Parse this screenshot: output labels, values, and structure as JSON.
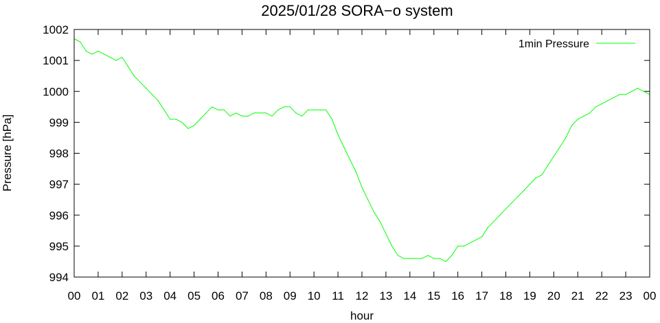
{
  "chart_data": {
    "type": "line",
    "title": "2025/01/28 SORA−o system",
    "xlabel": "hour",
    "ylabel": "Pressure [hPa]",
    "xlim": [
      0,
      24
    ],
    "ylim": [
      994,
      1002
    ],
    "x_tick_labels": [
      "00",
      "01",
      "02",
      "03",
      "04",
      "05",
      "06",
      "07",
      "08",
      "09",
      "10",
      "11",
      "12",
      "13",
      "14",
      "15",
      "16",
      "17",
      "18",
      "19",
      "20",
      "21",
      "22",
      "23",
      "00"
    ],
    "y_ticks": [
      994,
      995,
      996,
      997,
      998,
      999,
      1000,
      1001,
      1002
    ],
    "grid": false,
    "legend_position": "top-right",
    "series": [
      {
        "name": "1min Pressure",
        "color": "#00ff00",
        "x": [
          0,
          0.25,
          0.5,
          0.75,
          1.0,
          1.25,
          1.5,
          1.75,
          2.0,
          2.25,
          2.5,
          2.75,
          3.0,
          3.25,
          3.5,
          3.75,
          4.0,
          4.25,
          4.5,
          4.75,
          5.0,
          5.25,
          5.5,
          5.75,
          6.0,
          6.25,
          6.5,
          6.75,
          7.0,
          7.25,
          7.5,
          7.75,
          8.0,
          8.25,
          8.5,
          8.75,
          9.0,
          9.25,
          9.5,
          9.75,
          10.0,
          10.25,
          10.5,
          10.75,
          11.0,
          11.25,
          11.5,
          11.75,
          12.0,
          12.25,
          12.5,
          12.75,
          13.0,
          13.25,
          13.5,
          13.75,
          14.0,
          14.25,
          14.5,
          14.75,
          15.0,
          15.25,
          15.5,
          15.75,
          16.0,
          16.25,
          16.5,
          16.75,
          17.0,
          17.25,
          17.5,
          17.75,
          18.0,
          18.25,
          18.5,
          18.75,
          19.0,
          19.25,
          19.5,
          19.75,
          20.0,
          20.25,
          20.5,
          20.75,
          21.0,
          21.25,
          21.5,
          21.75,
          22.0,
          22.25,
          22.5,
          22.75,
          23.0,
          23.25,
          23.5,
          23.75,
          24.0
        ],
        "y": [
          1001.7,
          1001.6,
          1001.3,
          1001.2,
          1001.3,
          1001.2,
          1001.1,
          1001.0,
          1001.1,
          1000.8,
          1000.5,
          1000.3,
          1000.1,
          999.9,
          999.7,
          999.4,
          999.1,
          999.1,
          999.0,
          998.8,
          998.9,
          999.1,
          999.3,
          999.5,
          999.4,
          999.4,
          999.2,
          999.3,
          999.2,
          999.2,
          999.3,
          999.3,
          999.3,
          999.2,
          999.4,
          999.5,
          999.5,
          999.3,
          999.2,
          999.4,
          999.4,
          999.4,
          999.4,
          999.1,
          998.6,
          998.2,
          997.8,
          997.4,
          996.9,
          996.5,
          996.1,
          995.8,
          995.4,
          995.0,
          994.7,
          994.6,
          994.6,
          994.6,
          994.6,
          994.7,
          994.6,
          994.6,
          994.5,
          994.7,
          995.0,
          995.0,
          995.1,
          995.2,
          995.3,
          995.6,
          995.8,
          996.0,
          996.2,
          996.4,
          996.6,
          996.8,
          997.0,
          997.2,
          997.3,
          997.6,
          997.9,
          998.2,
          998.5,
          998.9,
          999.1,
          999.2,
          999.3,
          999.5,
          999.6,
          999.7,
          999.8,
          999.9,
          999.9,
          1000.0,
          1000.1,
          1000.0,
          999.9
        ]
      }
    ]
  }
}
